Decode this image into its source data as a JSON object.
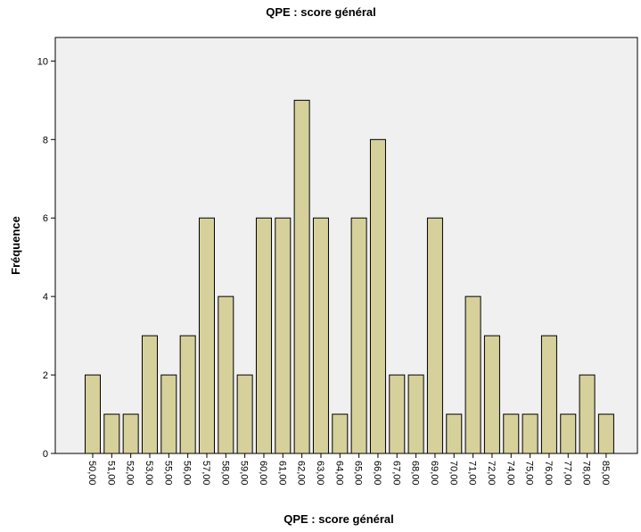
{
  "chart_data": {
    "type": "bar",
    "title": "QPE : score général",
    "x_label": "QPE : score général",
    "y_label": "Fréquence",
    "categories": [
      "50,00",
      "51,00",
      "52,00",
      "53,00",
      "55,00",
      "56,00",
      "57,00",
      "58,00",
      "59,00",
      "60,00",
      "61,00",
      "62,00",
      "63,00",
      "64,00",
      "65,00",
      "66,00",
      "67,00",
      "68,00",
      "69,00",
      "70,00",
      "71,00",
      "72,00",
      "74,00",
      "75,00",
      "76,00",
      "77,00",
      "78,00",
      "85,00"
    ],
    "values": [
      2,
      1,
      1,
      3,
      2,
      3,
      6,
      4,
      2,
      6,
      6,
      9,
      6,
      1,
      6,
      8,
      2,
      2,
      6,
      1,
      4,
      3,
      1,
      1,
      3,
      1,
      2,
      1
    ],
    "color": "#d6d19b",
    "ylim": [
      0,
      10.6
    ],
    "yticks": [
      0,
      2,
      4,
      6,
      8,
      10
    ],
    "grid": false
  }
}
